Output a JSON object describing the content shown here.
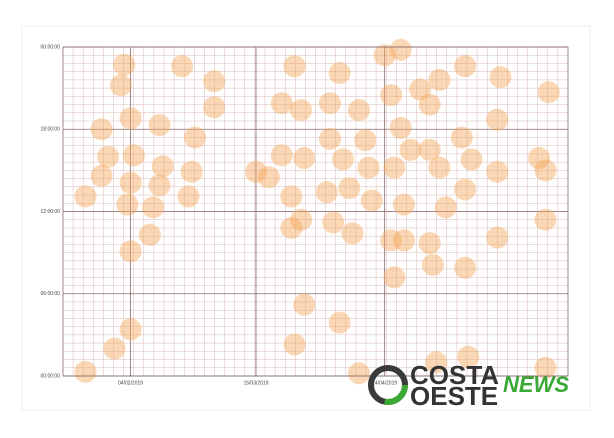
{
  "chart_data": {
    "type": "scatter",
    "x": [
      33,
      51,
      61,
      32,
      61,
      35,
      26,
      44,
      55,
      28,
      36,
      45,
      26,
      35,
      44,
      54,
      21,
      34,
      42,
      53,
      41,
      35,
      89,
      35,
      30,
      86,
      100,
      21,
      86,
      100,
      114,
      119,
      139,
      150,
      165,
      82,
      88,
      97,
      106,
      116,
      125,
      131,
      128,
      149,
      138,
      97,
      108,
      119,
      122,
      128,
      82,
      89,
      101,
      109,
      117,
      131,
      141,
      149,
      162,
      164,
      74,
      78,
      96,
      103,
      110,
      120,
      133,
      139,
      85,
      88,
      85,
      98,
      104,
      116,
      120,
      128,
      149,
      164,
      117,
      129,
      139,
      130,
      140,
      164,
      106
    ],
    "values": [
      22.7,
      22.6,
      21.5,
      21.2,
      19.6,
      18.8,
      18,
      18.3,
      17.4,
      16,
      16.1,
      15.3,
      14.6,
      14.1,
      13.9,
      14.9,
      13.1,
      12.5,
      12.3,
      13.1,
      10.3,
      9.1,
      5.2,
      3.4,
      2,
      2.3,
      3.9,
      0.3,
      22.6,
      22.1,
      23.4,
      23.8,
      22.6,
      21.8,
      20.7,
      19.9,
      19.4,
      19.9,
      19.4,
      20.5,
      20.9,
      21.6,
      19.8,
      18.7,
      17.4,
      17.3,
      17.2,
      18.1,
      16.5,
      16.5,
      16.1,
      15.9,
      15.8,
      15.2,
      15.2,
      15.2,
      15.8,
      14.9,
      15.9,
      15,
      14.9,
      14.5,
      13.4,
      13.7,
      12.8,
      12.5,
      12.3,
      13.6,
      13.1,
      11.4,
      10.8,
      11.2,
      10.4,
      9.9,
      9.9,
      9.7,
      10.1,
      11.4,
      7.2,
      8.1,
      7.9,
      1,
      1.4,
      0.6,
      0.2
    ],
    "color": "#f4a85c",
    "xlim": [
      14,
      171
    ],
    "xticks": [
      {
        "value": 35,
        "label": "04/02/2019"
      },
      {
        "value": 74,
        "label": "15/03/2019"
      },
      {
        "value": 114,
        "label": "24/04/2019"
      }
    ],
    "ylim": [
      0,
      24
    ],
    "yticks": [
      {
        "value": 0,
        "label": "00:00:00"
      },
      {
        "value": 6,
        "label": "06:00:00"
      },
      {
        "value": 12,
        "label": "12:00:00"
      },
      {
        "value": 18,
        "label": "18:00:00"
      },
      {
        "value": 24,
        "label": "00:00:00"
      }
    ],
    "grid": true
  },
  "logo": {
    "line1": "COSTA",
    "line2": "OESTE",
    "tag": "NEWS"
  }
}
